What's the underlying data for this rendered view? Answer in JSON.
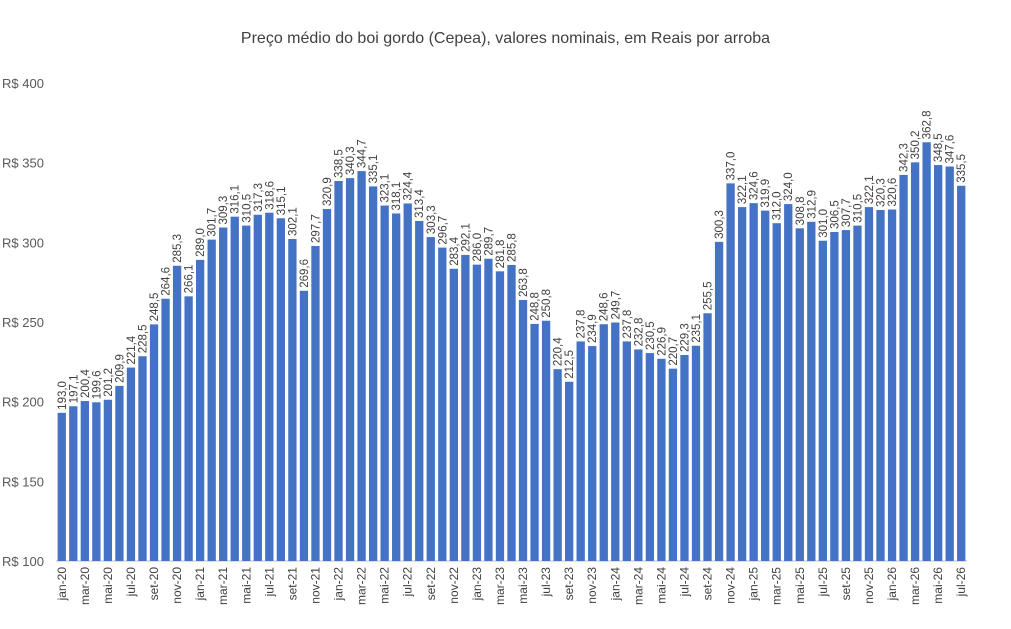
{
  "chart_data": {
    "type": "bar",
    "title": "Preço médio do boi gordo (Cepea), valores nominais, em Reais por arroba",
    "xlabel": "",
    "ylabel": "",
    "ylim": [
      100,
      400
    ],
    "y_ticks": [
      "R$ 100",
      "R$ 150",
      "R$ 200",
      "R$ 250",
      "R$ 300",
      "R$ 350",
      "R$ 400"
    ],
    "y_tick_values": [
      100,
      150,
      200,
      250,
      300,
      350,
      400
    ],
    "grid": false,
    "bar_color": "#4472C4",
    "x_tick_labels": [
      "jan-20",
      "mar-20",
      "mai-20",
      "jul-20",
      "set-20",
      "nov-20",
      "jan-21",
      "mar-21",
      "mai-21",
      "jul-21",
      "set-21",
      "nov-21",
      "jan-22",
      "mar-22",
      "mai-22",
      "jul-22",
      "set-22",
      "nov-22",
      "jan-23",
      "mar-23",
      "mai-23",
      "jul-23",
      "set-23",
      "nov-23",
      "jan-24",
      "mar-24",
      "mai-24",
      "jul-24",
      "set-24",
      "nov-24",
      "jan-25",
      "mar-25",
      "mai-25",
      "jul-25",
      "set-25",
      "nov-25",
      "jan-26",
      "mar-26",
      "mai-26",
      "jul-26"
    ],
    "values": [
      193.0,
      197.1,
      200.4,
      199.6,
      201.2,
      209.9,
      221.4,
      228.5,
      248.5,
      264.6,
      285.3,
      266.1,
      289.0,
      301.7,
      309.3,
      316.1,
      310.5,
      317.3,
      318.6,
      315.1,
      302.1,
      269.6,
      297.7,
      320.9,
      338.5,
      340.3,
      344.7,
      335.1,
      323.1,
      318.1,
      324.4,
      313.4,
      303.3,
      296.7,
      283.4,
      292.1,
      286.0,
      289.7,
      281.8,
      285.8,
      263.8,
      248.8,
      250.8,
      220.4,
      212.5,
      237.8,
      234.9,
      248.6,
      249.7,
      237.8,
      232.8,
      230.5,
      226.9,
      220.7,
      229.3,
      235.1,
      255.5,
      300.3,
      337.0,
      322.1,
      324.6,
      319.9,
      312.0,
      324.0,
      308.8,
      312.9,
      301.0,
      306.5,
      307.7,
      310.5,
      322.1,
      320.3,
      320.6,
      342.3,
      350.2,
      362.8,
      348.5,
      347.6,
      335.5
    ],
    "data_labels": [
      "193,0",
      "197,1",
      "200,4",
      "199,6",
      "201,2",
      "209,9",
      "221,4",
      "228,5",
      "248,5",
      "264,6",
      "285,3",
      "266,1",
      "289,0",
      "301,7",
      "309,3",
      "316,1",
      "310,5",
      "317,3",
      "318,6",
      "315,1",
      "302,1",
      "269,6",
      "297,7",
      "320,9",
      "338,5",
      "340,3",
      "344,7",
      "335,1",
      "323,1",
      "318,1",
      "324,4",
      "313,4",
      "303,3",
      "296,7",
      "283,4",
      "292,1",
      "286,0",
      "289,7",
      "281,8",
      "285,8",
      "263,8",
      "248,8",
      "250,8",
      "220,4",
      "212,5",
      "237,8",
      "234,9",
      "248,6",
      "249,7",
      "237,8",
      "232,8",
      "230,5",
      "226,9",
      "220,7",
      "229,3",
      "235,1",
      "255,5",
      "300,3",
      "337,0",
      "322,1",
      "324,6",
      "319,9",
      "312,0",
      "324,0",
      "308,8",
      "312,9",
      "301,0",
      "306,5",
      "307,7",
      "310,5",
      "322,1",
      "320,3",
      "320,6",
      "342,3",
      "350,2",
      "362,8",
      "348,5",
      "347,6",
      "335,5"
    ]
  }
}
